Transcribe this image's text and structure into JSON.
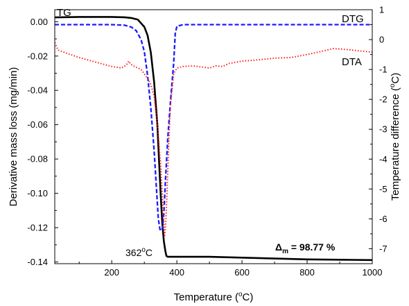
{
  "chart_data": {
    "type": "line",
    "xlabel": "Temperature (°C)",
    "ylabel_left": "Derivative mass loss (mg/min)",
    "ylabel_right": "Temperature difference (°C)",
    "xlim": [
      25,
      1000
    ],
    "ylim_left": [
      -0.141,
      0.007
    ],
    "ylim_right": [
      -7.5,
      1.0
    ],
    "x_ticks": [
      200,
      400,
      600,
      800,
      1000
    ],
    "y_left_ticks": [
      0.0,
      -0.02,
      -0.04,
      -0.06,
      -0.08,
      -0.1,
      -0.12,
      -0.14
    ],
    "y_left_tick_labels": [
      "0.00",
      "-0.02",
      "-0.04",
      "-0.06",
      "-0.08",
      "-0.10",
      "-0.12",
      "-0.14"
    ],
    "y_right_ticks": [
      1,
      0,
      -1,
      -2,
      -3,
      -4,
      -5,
      -6,
      -7
    ],
    "grid": false,
    "series": [
      {
        "name": "TG",
        "axis": "left",
        "color": "#000000",
        "style": "solid",
        "x": [
          25,
          100,
          200,
          240,
          260,
          280,
          300,
          310,
          320,
          330,
          340,
          345,
          350,
          355,
          360,
          365,
          368,
          372,
          380,
          400,
          500,
          600,
          700,
          800,
          900,
          1000
        ],
        "y": [
          0.0025,
          0.0028,
          0.0028,
          0.0026,
          0.0022,
          0.0012,
          -0.003,
          -0.008,
          -0.018,
          -0.035,
          -0.06,
          -0.08,
          -0.1,
          -0.117,
          -0.128,
          -0.134,
          -0.1365,
          -0.137,
          -0.137,
          -0.137,
          -0.137,
          -0.1375,
          -0.138,
          -0.1385,
          -0.1387,
          -0.1389
        ]
      },
      {
        "name": "DTG",
        "axis": "right",
        "color": "#1a1aff",
        "style": "dashed",
        "x": [
          25,
          100,
          200,
          240,
          260,
          275,
          290,
          300,
          310,
          320,
          330,
          338,
          343,
          348,
          352,
          356,
          360,
          365,
          372,
          380,
          390,
          395,
          400,
          420,
          500,
          700,
          900,
          1000
        ],
        "y": [
          0.5,
          0.5,
          0.5,
          0.48,
          0.42,
          0.3,
          0.0,
          -0.4,
          -1.2,
          -2.3,
          -3.7,
          -5.1,
          -6.0,
          -6.35,
          -6.4,
          -6.3,
          -5.8,
          -4.7,
          -3.3,
          -2.1,
          -0.8,
          0.2,
          0.45,
          0.5,
          0.5,
          0.5,
          0.5,
          0.5
        ]
      },
      {
        "name": "DTA",
        "axis": "right",
        "color": "#ff1a1a",
        "style": "dotted",
        "x": [
          25,
          35,
          60,
          100,
          150,
          200,
          230,
          245,
          252,
          258,
          270,
          290,
          310,
          320,
          330,
          340,
          350,
          356,
          362,
          366,
          370,
          375,
          380,
          390,
          400,
          420,
          450,
          480,
          500,
          520,
          540,
          560,
          600,
          650,
          700,
          750,
          800,
          850,
          880,
          920,
          960,
          1000
        ],
        "y": [
          -0.1,
          -0.35,
          -0.45,
          -0.6,
          -0.75,
          -0.9,
          -0.95,
          -0.85,
          -0.72,
          -0.82,
          -0.9,
          -1.0,
          -1.3,
          -1.5,
          -1.9,
          -2.8,
          -4.2,
          -5.3,
          -6.6,
          -6.1,
          -5.0,
          -3.5,
          -2.2,
          -1.15,
          -0.95,
          -0.9,
          -0.88,
          -0.92,
          -0.95,
          -0.88,
          -0.9,
          -0.8,
          -0.72,
          -0.68,
          -0.62,
          -0.6,
          -0.5,
          -0.38,
          -0.3,
          -0.33,
          -0.38,
          -0.42
        ]
      }
    ],
    "annotations": {
      "tg_label": "TG",
      "dtg_label": "DTG",
      "dta_label": "DTA",
      "peak_temp_label": "362°C",
      "mass_loss_label": "Δm = 98.77 %"
    }
  }
}
